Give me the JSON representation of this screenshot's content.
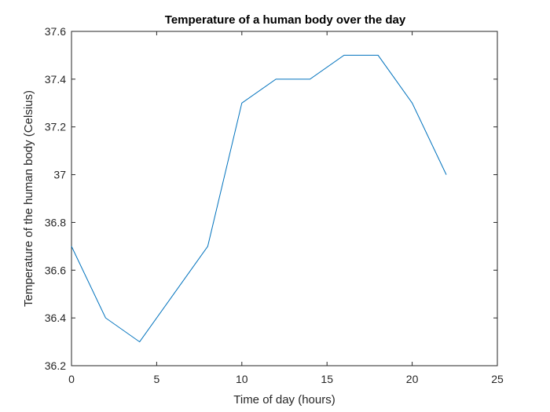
{
  "chart_data": {
    "type": "line",
    "title": "Temperature of a human body over the day",
    "xlabel": "Time of day (hours)",
    "ylabel": "Temperature of the human body (Celsius)",
    "xlim": [
      0,
      25
    ],
    "ylim": [
      36.2,
      37.6
    ],
    "xticks": [
      0,
      5,
      10,
      15,
      20,
      25
    ],
    "xtick_labels": [
      "0",
      "5",
      "10",
      "15",
      "20",
      "25"
    ],
    "yticks": [
      36.2,
      36.4,
      36.6,
      36.8,
      37,
      37.2,
      37.4,
      37.6
    ],
    "ytick_labels": [
      "36.2",
      "36.4",
      "36.6",
      "36.8",
      "37",
      "37.2",
      "37.4",
      "37.6"
    ],
    "grid": false,
    "series": [
      {
        "color": "#0072BD",
        "x": [
          0,
          2,
          4,
          6,
          8,
          10,
          12,
          14,
          16,
          18,
          20,
          22
        ],
        "y": [
          36.7,
          36.4,
          36.3,
          36.5,
          36.7,
          37.3,
          37.4,
          37.4,
          37.5,
          37.5,
          37.3,
          37.0
        ]
      }
    ]
  }
}
